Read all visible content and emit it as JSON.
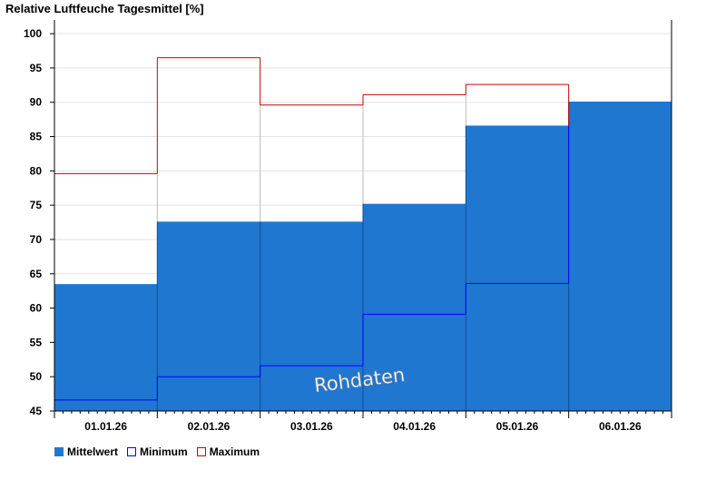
{
  "chart_data": {
    "type": "bar",
    "title": "Relative Luftfeuche Tagesmittel [%]",
    "categories": [
      "01.01.26",
      "02.01.26",
      "03.01.26",
      "04.01.26",
      "05.01.26",
      "06.01.26"
    ],
    "series": [
      {
        "name": "Mittelwert",
        "values": [
          63.5,
          72.6,
          72.6,
          75.2,
          86.6,
          90.1
        ],
        "color": "#1f77d0"
      },
      {
        "name": "Minimum",
        "values": [
          46.6,
          50.0,
          51.6,
          59.1,
          63.6,
          null
        ],
        "color": "#0000ff"
      },
      {
        "name": "Maximum",
        "values": [
          79.6,
          96.5,
          89.6,
          91.1,
          92.6,
          null
        ],
        "color": "#cc0000"
      }
    ],
    "ylim": [
      45,
      102
    ],
    "yticks": [
      45,
      50,
      55,
      60,
      65,
      70,
      75,
      80,
      85,
      90,
      95,
      100
    ],
    "grid": true,
    "legend_position": "bottom-left",
    "annotation": "Rohdaten"
  }
}
